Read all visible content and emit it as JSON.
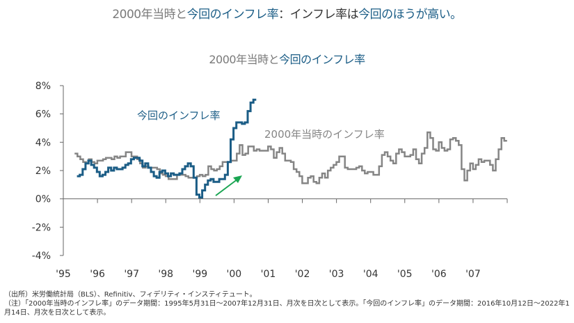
{
  "title": {
    "part1": "2000年当時と",
    "part2": "今回のインフレ率",
    "part3": "：インフレ率は",
    "part4": "今回のほうが高い。"
  },
  "subtitle": {
    "part1": "2000年当時と",
    "part2": "今回のインフレ率"
  },
  "notes": [
    "（出所）米労働統計局（BLS）、Refinitiv、フィデリティ・インスティテュート。",
    "（注）「2000年当時のインフレ率」のデータ期間：1995年5月31日～2007年12月31日、月次を日次として表示。「今回のインフレ率」のデータ期間：2016年10月12日～2022年1月14日、月次を日次として表示。"
  ],
  "colors": {
    "current": "#1b5d86",
    "past": "#858585",
    "arrow": "#1aa552",
    "axis": "#666666"
  },
  "chart_data": {
    "type": "line",
    "title": "2000年当時と今回のインフレ率",
    "xlabel": "",
    "ylabel": "",
    "xlim": [
      1995,
      2008
    ],
    "ylim": [
      -4,
      8
    ],
    "x_ticks": [
      "'95",
      "'96",
      "'97",
      "'98",
      "'99",
      "'00",
      "'01",
      "'02",
      "'03",
      "'04",
      "'05",
      "'06",
      "'07"
    ],
    "y_ticks": [
      "8%",
      "6%",
      "4%",
      "2%",
      "0%",
      "-2%",
      "-4%"
    ],
    "y_tick_values": [
      8,
      6,
      4,
      2,
      0,
      -2,
      -4
    ],
    "series": [
      {
        "name": "2000年当時のインフレ率",
        "label": "2000年当時のインフレ率",
        "start": 1995.33,
        "step": "monthly",
        "values": [
          3.2,
          3.0,
          2.8,
          2.6,
          2.5,
          2.8,
          2.6,
          2.5,
          2.7,
          2.7,
          2.8,
          2.9,
          2.9,
          2.8,
          3.0,
          2.9,
          3.0,
          3.0,
          3.3,
          3.3,
          3.0,
          3.0,
          2.8,
          2.5,
          2.2,
          2.3,
          2.2,
          2.2,
          2.2,
          2.1,
          1.8,
          1.7,
          1.6,
          1.4,
          1.4,
          1.4,
          1.7,
          1.7,
          1.7,
          1.6,
          1.5,
          1.5,
          1.5,
          1.6,
          1.7,
          1.6,
          1.7,
          2.3,
          2.1,
          2.0,
          2.1,
          2.3,
          2.6,
          2.6,
          2.6,
          2.7,
          2.7,
          3.2,
          3.8,
          3.1,
          3.2,
          3.7,
          3.7,
          3.4,
          3.5,
          3.4,
          3.4,
          3.4,
          3.7,
          3.5,
          2.9,
          3.3,
          3.6,
          3.2,
          2.7,
          2.7,
          2.6,
          2.1,
          1.9,
          1.6,
          1.1,
          1.1,
          1.5,
          1.6,
          1.2,
          1.1,
          1.5,
          1.8,
          1.5,
          2.0,
          2.2,
          2.4,
          2.6,
          3.0,
          3.0,
          2.2,
          2.1,
          2.1,
          2.1,
          2.2,
          2.3,
          2.0,
          1.8,
          1.9,
          1.9,
          1.7,
          1.7,
          2.3,
          3.1,
          3.3,
          3.0,
          2.7,
          2.5,
          3.2,
          3.5,
          3.3,
          3.0,
          3.0,
          3.1,
          3.5,
          2.8,
          2.5,
          3.2,
          3.6,
          4.7,
          4.3,
          3.5,
          3.4,
          4.0,
          3.6,
          3.4,
          3.5,
          4.2,
          4.3,
          4.1,
          3.8,
          2.1,
          1.3,
          2.0,
          2.5,
          2.1,
          2.4,
          2.8,
          2.6,
          2.7,
          2.7,
          2.4,
          2.0,
          2.8,
          3.5,
          4.3,
          4.1
        ]
      },
      {
        "name": "今回のインフレ率",
        "label": "今回のインフレ率",
        "start": 1995.4,
        "step": "monthly",
        "values": [
          1.6,
          1.7,
          2.1,
          2.5,
          2.7,
          2.4,
          2.2,
          1.9,
          1.6,
          1.7,
          1.9,
          2.2,
          2.0,
          2.2,
          2.1,
          2.1,
          2.2,
          2.4,
          2.5,
          2.8,
          2.9,
          2.9,
          2.7,
          2.3,
          2.5,
          2.2,
          1.9,
          1.6,
          1.5,
          1.9,
          2.0,
          1.8,
          1.6,
          1.8,
          1.7,
          1.7,
          1.8,
          2.1,
          2.3,
          2.5,
          2.3,
          1.5,
          0.3,
          0.1,
          0.6,
          1.0,
          1.3,
          1.4,
          1.2,
          1.2,
          1.4,
          1.4,
          1.7,
          2.6,
          4.2,
          5.0,
          5.4,
          5.4,
          5.3,
          5.4,
          6.2,
          6.8,
          7.0
        ]
      }
    ],
    "annotations": [
      "up-arrow"
    ]
  }
}
